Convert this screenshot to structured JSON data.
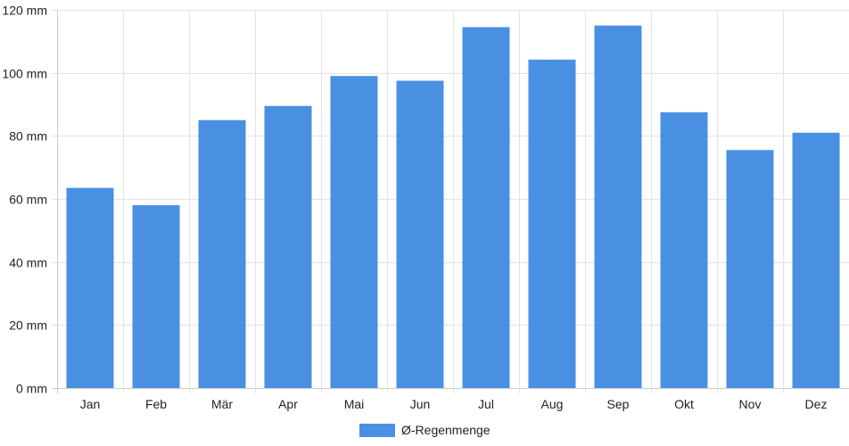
{
  "chart_data": {
    "type": "bar",
    "categories": [
      "Jan",
      "Feb",
      "Mär",
      "Apr",
      "Mai",
      "Jun",
      "Jul",
      "Aug",
      "Sep",
      "Okt",
      "Nov",
      "Dez"
    ],
    "series": [
      {
        "name": "Ø-Regenmenge",
        "values": [
          63.5,
          58,
          85,
          89.5,
          99,
          97.5,
          114.5,
          104.2,
          115,
          87.5,
          75.5,
          81
        ],
        "color": "#4a90e2"
      }
    ],
    "ylim": [
      0,
      120
    ],
    "y_ticks": [
      0,
      20,
      40,
      60,
      80,
      100,
      120
    ],
    "y_tick_labels": [
      "0 mm",
      "20 mm",
      "40 mm",
      "60 mm",
      "80 mm",
      "100 mm",
      "120 mm"
    ],
    "grid": true,
    "legend_position": "bottom-center"
  }
}
